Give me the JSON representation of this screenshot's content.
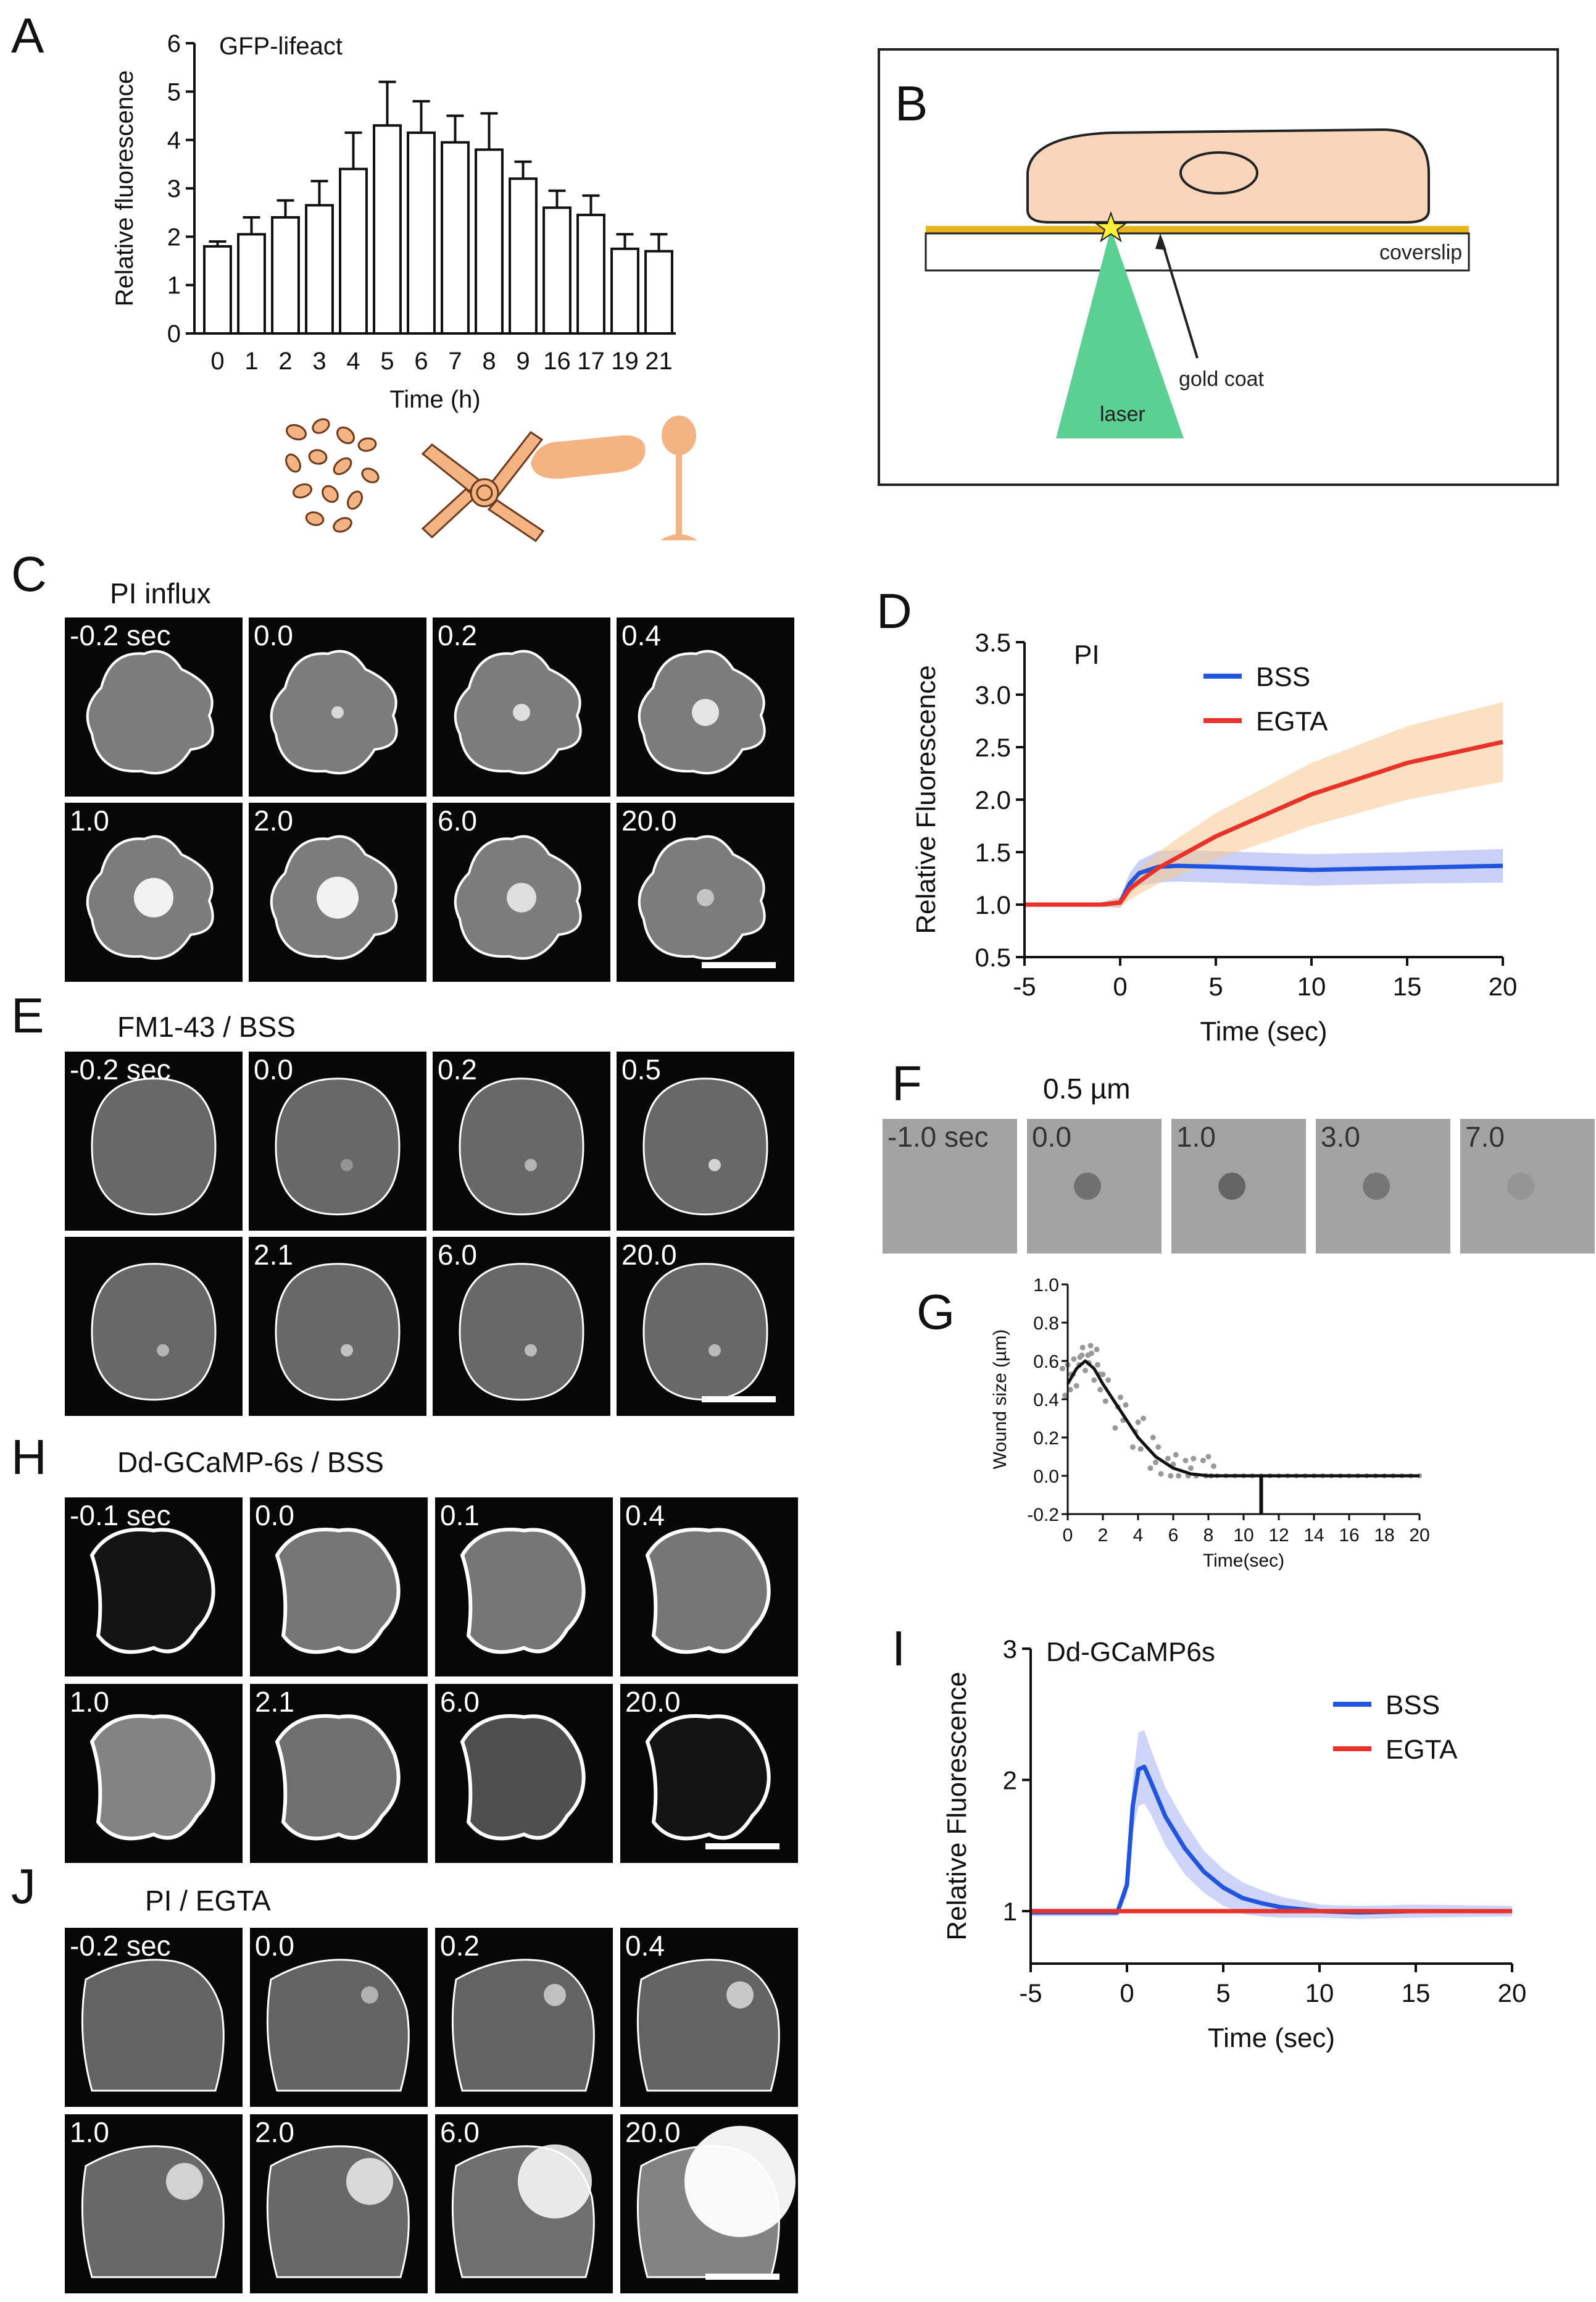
{
  "panels": {
    "A": {
      "letter": "A",
      "chart_data": {
        "type": "bar",
        "title": "GFP-lifeact",
        "xlabel": "Time (h)",
        "ylabel": "Relative fluorescence",
        "categories": [
          "0",
          "1",
          "2",
          "3",
          "4",
          "5",
          "6",
          "7",
          "8",
          "9",
          "16",
          "17",
          "19",
          "21"
        ],
        "values": [
          1.8,
          2.05,
          2.4,
          2.65,
          3.4,
          4.3,
          4.15,
          3.95,
          3.8,
          3.2,
          2.6,
          2.45,
          1.75,
          1.7
        ],
        "errors": [
          0.1,
          0.35,
          0.35,
          0.5,
          0.75,
          0.9,
          0.65,
          0.55,
          0.75,
          0.35,
          0.35,
          0.4,
          0.3,
          0.35
        ],
        "ylim": [
          0,
          6
        ],
        "yticks": [
          "0",
          "1",
          "2",
          "3",
          "4",
          "5",
          "6"
        ]
      },
      "stages": [
        "aggregation-cells-icon",
        "streaming-icon",
        "slug-icon",
        "fruiting-body-icon"
      ]
    },
    "B": {
      "letter": "B",
      "labels": {
        "coverslip": "coverslip",
        "gold_coat": "gold coat",
        "laser": "laser"
      },
      "colors": {
        "cell": "#f9d5bb",
        "gold": "#e8b41a",
        "laser": "#5ccf92",
        "star": "#fff03a"
      }
    },
    "C": {
      "letter": "C",
      "title": "PI influx",
      "tiles": [
        "-0.2 sec",
        "0.0",
        "0.2",
        "0.4",
        "1.0",
        "2.0",
        "6.0",
        "20.0"
      ]
    },
    "D": {
      "letter": "D",
      "chart_data": {
        "type": "line",
        "annotation": "PI",
        "xlabel": "Time (sec)",
        "ylabel": "Relative Fluorescence",
        "xlim": [
          -5,
          20
        ],
        "ylim": [
          0.5,
          3.5
        ],
        "xticks": [
          "-5",
          "0",
          "5",
          "10",
          "15",
          "20"
        ],
        "yticks": [
          "0.5",
          "1.0",
          "1.5",
          "2.0",
          "2.5",
          "3.0",
          "3.5"
        ],
        "series": [
          {
            "name": "BSS",
            "color": "#2255dd",
            "band_color": "#9aaaf0",
            "x": [
              -5,
              -1,
              0,
              0.5,
              1,
              2,
              3,
              5,
              10,
              15,
              20
            ],
            "y": [
              1.0,
              1.0,
              1.02,
              1.2,
              1.3,
              1.36,
              1.37,
              1.36,
              1.33,
              1.35,
              1.37
            ],
            "err": [
              0.02,
              0.02,
              0.05,
              0.1,
              0.12,
              0.15,
              0.15,
              0.15,
              0.15,
              0.15,
              0.16
            ]
          },
          {
            "name": "EGTA",
            "color": "#e8322a",
            "band_color": "#f7c98e",
            "x": [
              -5,
              -1,
              0,
              0.5,
              1,
              2,
              3,
              5,
              10,
              15,
              20
            ],
            "y": [
              1.0,
              1.0,
              1.02,
              1.15,
              1.22,
              1.35,
              1.45,
              1.65,
              2.05,
              2.35,
              2.55
            ],
            "err": [
              0.02,
              0.02,
              0.05,
              0.1,
              0.12,
              0.15,
              0.18,
              0.22,
              0.3,
              0.35,
              0.38
            ]
          }
        ]
      }
    },
    "E": {
      "letter": "E",
      "title": "FM1-43 / BSS",
      "tiles": [
        "-0.2 sec",
        "0.0",
        "0.2",
        "0.5",
        "",
        "2.1",
        "6.0",
        "20.0"
      ]
    },
    "F": {
      "letter": "F",
      "title": "0.5 µm",
      "tiles": [
        "-1.0 sec",
        "0.0",
        "1.0",
        "3.0",
        "7.0"
      ]
    },
    "G": {
      "letter": "G",
      "chart_data": {
        "type": "line",
        "xlabel": "Time(sec)",
        "ylabel": "Wound size (µm)",
        "xlim": [
          0,
          20
        ],
        "ylim": [
          -0.2,
          1.0
        ],
        "xticks": [
          "0",
          "2",
          "4",
          "6",
          "8",
          "10",
          "12",
          "14",
          "16",
          "18",
          "20"
        ],
        "yticks": [
          "-0.2",
          "0.0",
          "0.2",
          "0.4",
          "0.6",
          "0.8",
          "1.0"
        ],
        "fit": {
          "x": [
            0,
            0.5,
            1,
            1.5,
            2,
            3,
            4,
            5,
            6,
            7,
            8,
            9,
            10,
            20
          ],
          "y": [
            0.48,
            0.56,
            0.6,
            0.56,
            0.48,
            0.34,
            0.2,
            0.1,
            0.04,
            0.01,
            0.0,
            0.0,
            0.0,
            0.0
          ]
        },
        "marker_x": 11
      }
    },
    "H": {
      "letter": "H",
      "title": "Dd-GCaMP-6s / BSS",
      "tiles": [
        "-0.1 sec",
        "0.0",
        "0.1",
        "0.4",
        "1.0",
        "2.1",
        "6.0",
        "20.0"
      ]
    },
    "I": {
      "letter": "I",
      "chart_data": {
        "type": "line",
        "annotation": "Dd-GCaMP6s",
        "xlabel": "Time (sec)",
        "ylabel": "Relative Fluorescence",
        "xlim": [
          -5,
          20
        ],
        "ylim": [
          0.6,
          3.0
        ],
        "xticks": [
          "-5",
          "0",
          "5",
          "10",
          "15",
          "20"
        ],
        "yticks": [
          "1",
          "2",
          "3"
        ],
        "series": [
          {
            "name": "BSS",
            "color": "#2255dd",
            "band_color": "#a6b3f2",
            "x": [
              -5,
              -0.5,
              0,
              0.3,
              0.6,
              0.9,
              1.2,
              2,
              3,
              4,
              5,
              6,
              7,
              8,
              10,
              12,
              15,
              20
            ],
            "y": [
              0.99,
              0.99,
              1.2,
              1.8,
              2.08,
              2.1,
              2.0,
              1.72,
              1.48,
              1.3,
              1.18,
              1.1,
              1.06,
              1.03,
              1.0,
              0.99,
              1.0,
              1.0
            ],
            "err": [
              0.03,
              0.03,
              0.08,
              0.2,
              0.28,
              0.28,
              0.25,
              0.22,
              0.2,
              0.16,
              0.14,
              0.12,
              0.1,
              0.08,
              0.05,
              0.05,
              0.05,
              0.04
            ]
          },
          {
            "name": "EGTA",
            "color": "#e8322a",
            "band_color": "#f4b0a8",
            "x": [
              -5,
              0,
              5,
              10,
              15,
              20
            ],
            "y": [
              1.0,
              1.0,
              1.0,
              1.0,
              1.0,
              1.0
            ],
            "err": [
              0.01,
              0.01,
              0.01,
              0.01,
              0.01,
              0.01
            ]
          }
        ]
      }
    },
    "J": {
      "letter": "J",
      "title": "PI / EGTA",
      "tiles": [
        "-0.2 sec",
        "0.0",
        "0.2",
        "0.4",
        "1.0",
        "2.0",
        "6.0",
        "20.0"
      ]
    }
  }
}
